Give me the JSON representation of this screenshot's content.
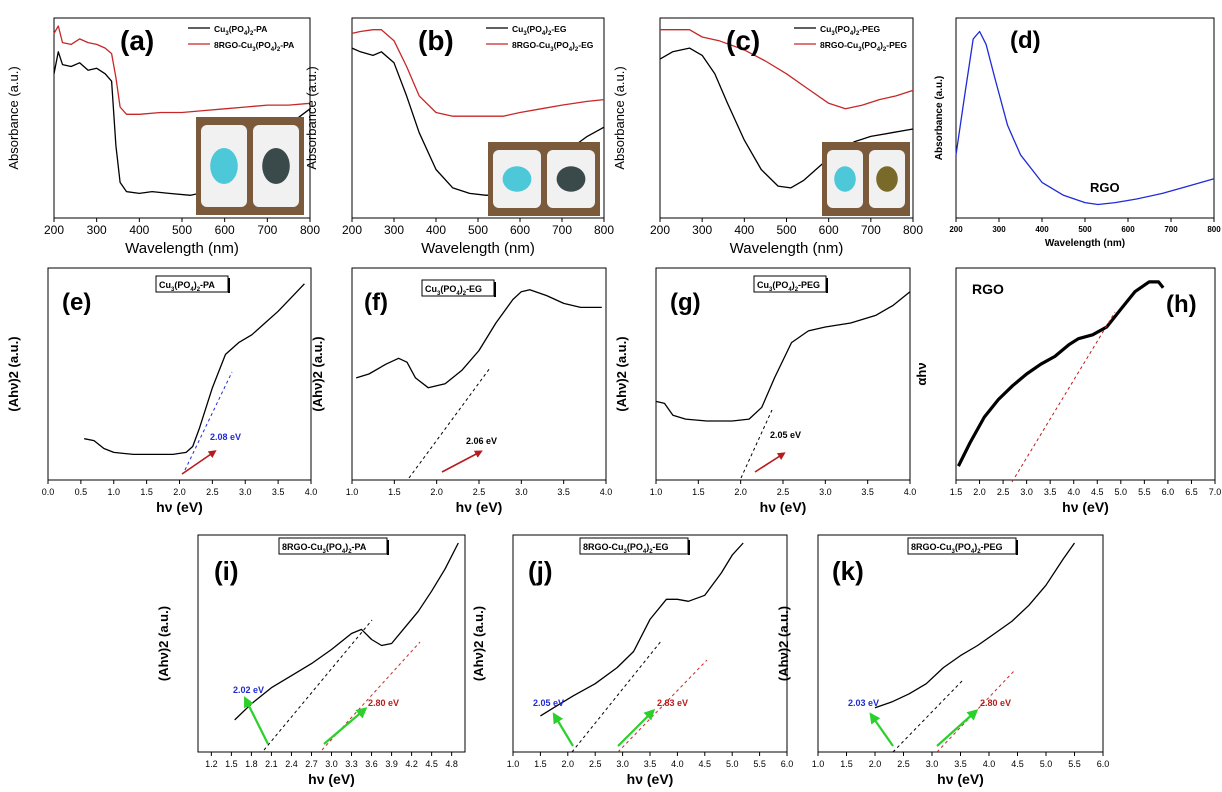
{
  "figure": {
    "colors": {
      "black": "#000000",
      "red": "#c62828",
      "blue": "#1f2bd6",
      "green": "#2bd12b",
      "navy": "#1a237e",
      "dark_red": "#b71c1c",
      "photo_bg": "#7a5a3a"
    },
    "panels_abs": [
      {
        "label": "(a)",
        "photo": true,
        "legend": [
          "Cu3(PO4)2-PA",
          "8RGO-Cu3(PO4)2-PA"
        ]
      },
      {
        "label": "(b)",
        "photo": true,
        "legend": [
          "Cu3(PO4)2-EG",
          "8RGO-Cu3(PO4)2-EG"
        ]
      },
      {
        "label": "(c)",
        "photo": true,
        "legend": [
          "Cu3(PO4)2-PEG",
          "8RGO-Cu3(PO4)2-PEG"
        ]
      },
      {
        "label": "(d)",
        "annotation": "RGO"
      }
    ],
    "panels_tauc": [
      {
        "label": "(e)",
        "name": "Cu3(PO4)2-PA",
        "gaps": [
          "2.08 eV"
        ]
      },
      {
        "label": "(f)",
        "name": "Cu3(PO4)2-EG",
        "gaps": [
          "2.06 eV"
        ]
      },
      {
        "label": "(g)",
        "name": "Cu3(PO4)2-PEG",
        "gaps": [
          "2.05 eV"
        ]
      },
      {
        "label": "(h)",
        "name": "RGO",
        "gaps": []
      },
      {
        "label": "(i)",
        "name": "8RGO-Cu3(PO4)2-PA",
        "gaps": [
          "2.02 eV",
          "2.80 eV"
        ]
      },
      {
        "label": "(j)",
        "name": "8RGO-Cu3(PO4)2-EG",
        "gaps": [
          "2.05 eV",
          "2.83 eV"
        ]
      },
      {
        "label": "(k)",
        "name": "8RGO-Cu3(PO4)2-PEG",
        "gaps": [
          "2.03 eV",
          "2.80 eV"
        ]
      }
    ]
  },
  "chart_data": [
    {
      "panel": "(a)",
      "type": "line",
      "xlabel": "Wavelength (nm)",
      "ylabel": "Absorbance (a.u.)",
      "xlim": [
        200,
        800
      ],
      "ylim": [
        0,
        1
      ],
      "xticks": [
        200,
        300,
        400,
        500,
        600,
        700,
        800
      ],
      "series": [
        {
          "name": "Cu3(PO4)2-PA",
          "color": "#000000",
          "x": [
            200,
            210,
            220,
            240,
            260,
            280,
            300,
            320,
            335,
            345,
            355,
            370,
            400,
            430,
            470,
            520,
            560,
            600,
            640,
            680,
            720,
            760,
            800
          ],
          "y": [
            0.74,
            0.86,
            0.79,
            0.78,
            0.8,
            0.76,
            0.77,
            0.74,
            0.7,
            0.35,
            0.15,
            0.1,
            0.09,
            0.1,
            0.09,
            0.08,
            0.1,
            0.14,
            0.24,
            0.37,
            0.46,
            0.48,
            0.55
          ]
        },
        {
          "name": "8RGO-Cu3(PO4)2-PA",
          "color": "#c62828",
          "x": [
            200,
            210,
            220,
            240,
            260,
            280,
            300,
            320,
            335,
            345,
            355,
            370,
            400,
            450,
            500,
            550,
            600,
            650,
            700,
            750,
            800
          ],
          "y": [
            0.96,
            1.0,
            0.91,
            0.9,
            0.93,
            0.91,
            0.9,
            0.88,
            0.85,
            0.72,
            0.56,
            0.52,
            0.52,
            0.53,
            0.53,
            0.54,
            0.55,
            0.56,
            0.57,
            0.57,
            0.58
          ]
        }
      ]
    },
    {
      "panel": "(b)",
      "type": "line",
      "xlabel": "Wavelength (nm)",
      "ylabel": "Absorbance (a.u.)",
      "xlim": [
        200,
        800
      ],
      "ylim": [
        0,
        1
      ],
      "xticks": [
        200,
        300,
        400,
        500,
        600,
        700,
        800
      ],
      "series": [
        {
          "name": "Cu3(PO4)2-EG",
          "color": "#000000",
          "x": [
            200,
            220,
            250,
            270,
            300,
            330,
            360,
            400,
            440,
            480,
            520,
            560,
            600,
            650,
            700,
            760,
            800
          ],
          "y": [
            0.88,
            0.86,
            0.84,
            0.86,
            0.8,
            0.62,
            0.42,
            0.22,
            0.12,
            0.09,
            0.08,
            0.09,
            0.12,
            0.2,
            0.3,
            0.4,
            0.45
          ]
        },
        {
          "name": "8RGO-Cu3(PO4)2-EG",
          "color": "#c62828",
          "x": [
            200,
            220,
            250,
            270,
            300,
            330,
            360,
            400,
            440,
            480,
            520,
            560,
            600,
            650,
            700,
            760,
            800
          ],
          "y": [
            0.96,
            0.97,
            0.98,
            0.98,
            0.92,
            0.78,
            0.62,
            0.53,
            0.51,
            0.51,
            0.51,
            0.51,
            0.53,
            0.55,
            0.57,
            0.59,
            0.6
          ]
        }
      ]
    },
    {
      "panel": "(c)",
      "type": "line",
      "xlabel": "Wavelength (nm)",
      "ylabel": "Absorbance (a.u.)",
      "xlim": [
        200,
        800
      ],
      "ylim": [
        0,
        1
      ],
      "xticks": [
        200,
        300,
        400,
        500,
        600,
        700,
        800
      ],
      "series": [
        {
          "name": "Cu3(PO4)2-PEG",
          "color": "#000000",
          "x": [
            200,
            230,
            270,
            300,
            330,
            360,
            400,
            440,
            480,
            510,
            540,
            580,
            620,
            660,
            700,
            750,
            800
          ],
          "y": [
            0.82,
            0.86,
            0.88,
            0.84,
            0.74,
            0.58,
            0.38,
            0.22,
            0.13,
            0.12,
            0.16,
            0.24,
            0.32,
            0.37,
            0.4,
            0.42,
            0.44
          ]
        },
        {
          "name": "8RGO-Cu3(PO4)2-PEG",
          "color": "#c62828",
          "x": [
            200,
            230,
            270,
            300,
            340,
            400,
            450,
            500,
            550,
            600,
            640,
            680,
            720,
            760,
            800
          ],
          "y": [
            0.98,
            0.98,
            0.98,
            0.94,
            0.92,
            0.87,
            0.81,
            0.74,
            0.66,
            0.58,
            0.55,
            0.57,
            0.6,
            0.62,
            0.65
          ]
        }
      ]
    },
    {
      "panel": "(d)",
      "type": "line",
      "xlabel": "Wavelength (nm)",
      "ylabel": "Absorbance (a.u.)",
      "xlim": [
        200,
        800
      ],
      "ylim": [
        0,
        1
      ],
      "xticks": [
        200,
        300,
        400,
        500,
        600,
        700,
        800
      ],
      "series": [
        {
          "name": "RGO",
          "color": "#1f2bd6",
          "x": [
            200,
            220,
            240,
            255,
            270,
            290,
            320,
            350,
            400,
            450,
            500,
            530,
            570,
            620,
            680,
            740,
            800
          ],
          "y": [
            0.3,
            0.62,
            0.93,
            0.97,
            0.9,
            0.72,
            0.46,
            0.3,
            0.15,
            0.08,
            0.04,
            0.03,
            0.04,
            0.06,
            0.09,
            0.13,
            0.17
          ]
        }
      ]
    },
    {
      "panel": "(e)",
      "type": "line",
      "xlabel": "hν (eV)",
      "ylabel": "(Ahν)2 (a.u.)",
      "xlim": [
        0,
        4
      ],
      "ylim": [
        0,
        1
      ],
      "xticks": [
        0.0,
        0.5,
        1.0,
        1.5,
        2.0,
        2.5,
        3.0,
        3.5,
        4.0
      ],
      "series": [
        {
          "name": "Cu3(PO4)2-PA",
          "color": "#000000",
          "x": [
            0.55,
            0.7,
            0.85,
            1.0,
            1.3,
            1.6,
            1.9,
            2.1,
            2.2,
            2.3,
            2.5,
            2.7,
            2.9,
            3.1,
            3.3,
            3.5,
            3.7,
            3.9
          ],
          "y": [
            0.17,
            0.16,
            0.12,
            0.1,
            0.09,
            0.09,
            0.09,
            0.1,
            0.13,
            0.22,
            0.43,
            0.6,
            0.66,
            0.7,
            0.76,
            0.82,
            0.89,
            0.96
          ]
        }
      ],
      "band_gap_eV": 2.08
    },
    {
      "panel": "(f)",
      "type": "line",
      "xlabel": "hν (eV)",
      "ylabel": "(Ahν)2 (a.u.)",
      "xlim": [
        1,
        4
      ],
      "ylim": [
        0,
        1
      ],
      "xticks": [
        1.0,
        1.5,
        2.0,
        2.5,
        3.0,
        3.5,
        4.0
      ],
      "series": [
        {
          "name": "Cu3(PO4)2-EG",
          "color": "#000000",
          "x": [
            1.05,
            1.2,
            1.4,
            1.55,
            1.65,
            1.75,
            1.9,
            2.1,
            2.3,
            2.5,
            2.7,
            2.9,
            3.0,
            3.1,
            3.3,
            3.5,
            3.7,
            3.95
          ],
          "y": [
            0.48,
            0.5,
            0.55,
            0.58,
            0.56,
            0.48,
            0.43,
            0.45,
            0.52,
            0.62,
            0.76,
            0.88,
            0.92,
            0.93,
            0.9,
            0.86,
            0.84,
            0.84
          ]
        }
      ],
      "band_gap_eV": 2.06
    },
    {
      "panel": "(g)",
      "type": "line",
      "xlabel": "hν (eV)",
      "ylabel": "(Ahν)2 (a.u.)",
      "xlim": [
        1,
        4
      ],
      "ylim": [
        0,
        1
      ],
      "xticks": [
        1.0,
        1.5,
        2.0,
        2.5,
        3.0,
        3.5,
        4.0
      ],
      "series": [
        {
          "name": "Cu3(PO4)2-PEG",
          "color": "#000000",
          "x": [
            1.0,
            1.1,
            1.2,
            1.35,
            1.6,
            1.9,
            2.1,
            2.25,
            2.4,
            2.6,
            2.8,
            3.0,
            3.3,
            3.6,
            3.8,
            4.0
          ],
          "y": [
            0.36,
            0.35,
            0.29,
            0.27,
            0.26,
            0.26,
            0.27,
            0.33,
            0.48,
            0.66,
            0.72,
            0.74,
            0.76,
            0.8,
            0.85,
            0.92
          ]
        }
      ],
      "band_gap_eV": 2.05
    },
    {
      "panel": "(h)",
      "type": "line",
      "xlabel": "hν (eV)",
      "ylabel": "αhν",
      "xlim": [
        1.5,
        7.0
      ],
      "ylim": [
        0,
        1
      ],
      "xticks": [
        1.5,
        2.0,
        2.5,
        3.0,
        3.5,
        4.0,
        4.5,
        5.0,
        5.5,
        6.0,
        6.5,
        7.0
      ],
      "series": [
        {
          "name": "RGO",
          "color": "#000000",
          "x": [
            1.55,
            1.8,
            2.1,
            2.4,
            2.7,
            3.0,
            3.3,
            3.6,
            3.9,
            4.1,
            4.4,
            4.7,
            5.0,
            5.3,
            5.6,
            5.8,
            5.9
          ],
          "y": [
            0.03,
            0.15,
            0.28,
            0.37,
            0.44,
            0.5,
            0.55,
            0.59,
            0.65,
            0.68,
            0.7,
            0.74,
            0.83,
            0.92,
            0.97,
            0.97,
            0.94
          ]
        }
      ]
    },
    {
      "panel": "(i)",
      "type": "line",
      "xlabel": "hν (eV)",
      "ylabel": "(Ahν)2 (a.u.)",
      "xlim": [
        1.0,
        5.0
      ],
      "ylim": [
        0,
        1
      ],
      "xticks": [
        1.2,
        1.5,
        1.8,
        2.1,
        2.4,
        2.7,
        3.0,
        3.3,
        3.6,
        3.9,
        4.2,
        4.5,
        4.8
      ],
      "series": [
        {
          "name": "8RGO-Cu3(PO4)2-PA",
          "color": "#000000",
          "x": [
            1.55,
            1.8,
            2.1,
            2.4,
            2.7,
            3.0,
            3.3,
            3.45,
            3.6,
            3.75,
            3.9,
            4.1,
            4.3,
            4.5,
            4.7,
            4.9
          ],
          "y": [
            0.12,
            0.2,
            0.28,
            0.34,
            0.4,
            0.47,
            0.55,
            0.57,
            0.52,
            0.49,
            0.5,
            0.58,
            0.66,
            0.76,
            0.87,
            1.0
          ]
        }
      ],
      "band_gaps_eV": [
        2.02,
        2.8
      ]
    },
    {
      "panel": "(j)",
      "type": "line",
      "xlabel": "hν (eV)",
      "ylabel": "(Ahν)2 (a.u.)",
      "xlim": [
        1.0,
        6.0
      ],
      "ylim": [
        0,
        1
      ],
      "xticks": [
        1.0,
        1.5,
        2.0,
        2.5,
        3.0,
        3.5,
        4.0,
        4.5,
        5.0,
        5.5,
        6.0
      ],
      "series": [
        {
          "name": "8RGO-Cu3(PO4)2-EG",
          "color": "#000000",
          "x": [
            1.5,
            1.8,
            2.1,
            2.5,
            2.9,
            3.2,
            3.5,
            3.8,
            4.0,
            4.2,
            4.5,
            4.8,
            5.0,
            5.2
          ],
          "y": [
            0.14,
            0.19,
            0.24,
            0.3,
            0.38,
            0.46,
            0.62,
            0.72,
            0.72,
            0.71,
            0.74,
            0.85,
            0.94,
            1.0
          ]
        }
      ],
      "band_gaps_eV": [
        2.05,
        2.83
      ]
    },
    {
      "panel": "(k)",
      "type": "line",
      "xlabel": "hν (eV)",
      "ylabel": "(Ahν)2 (a.u.)",
      "xlim": [
        1.0,
        6.0
      ],
      "ylim": [
        0,
        1
      ],
      "xticks": [
        1.0,
        1.5,
        2.0,
        2.5,
        3.0,
        3.5,
        4.0,
        4.5,
        5.0,
        5.5,
        6.0
      ],
      "series": [
        {
          "name": "8RGO-Cu3(PO4)2-PEG",
          "color": "#000000",
          "x": [
            2.0,
            2.3,
            2.6,
            2.9,
            3.2,
            3.5,
            3.8,
            4.1,
            4.4,
            4.7,
            5.0,
            5.3,
            5.5
          ],
          "y": [
            0.18,
            0.21,
            0.25,
            0.3,
            0.38,
            0.44,
            0.49,
            0.55,
            0.61,
            0.69,
            0.79,
            0.92,
            1.0
          ]
        }
      ],
      "band_gaps_eV": [
        2.03,
        2.8
      ]
    }
  ]
}
